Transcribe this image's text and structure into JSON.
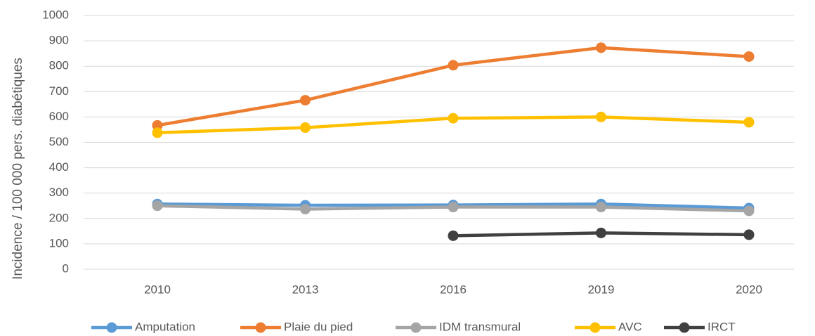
{
  "chart_data": {
    "type": "line",
    "y_label": "Incidence / 100 000 pers. diabétiques",
    "categories": [
      "2010",
      "2013",
      "2016",
      "2019",
      "2020"
    ],
    "series": [
      {
        "name": "Amputation",
        "color": "#5b9bd5",
        "values": [
          257,
          252,
          253,
          257,
          241
        ]
      },
      {
        "name": "Plaie du pied",
        "color": "#ed7d31",
        "values": [
          567,
          666,
          804,
          873,
          838
        ]
      },
      {
        "name": "IDM transmural",
        "color": "#a5a5a5",
        "values": [
          250,
          237,
          245,
          245,
          230
        ]
      },
      {
        "name": "AVC",
        "color": "#ffc000",
        "values": [
          538,
          558,
          595,
          600,
          579
        ]
      },
      {
        "name": "IRCT",
        "color": "#404040",
        "values": [
          null,
          null,
          132,
          143,
          136
        ]
      }
    ],
    "ylim": [
      0,
      1000
    ],
    "yticks": [
      0,
      100,
      200,
      300,
      400,
      500,
      600,
      700,
      800,
      900,
      1000
    ],
    "grid": true,
    "legend": "bottom"
  }
}
